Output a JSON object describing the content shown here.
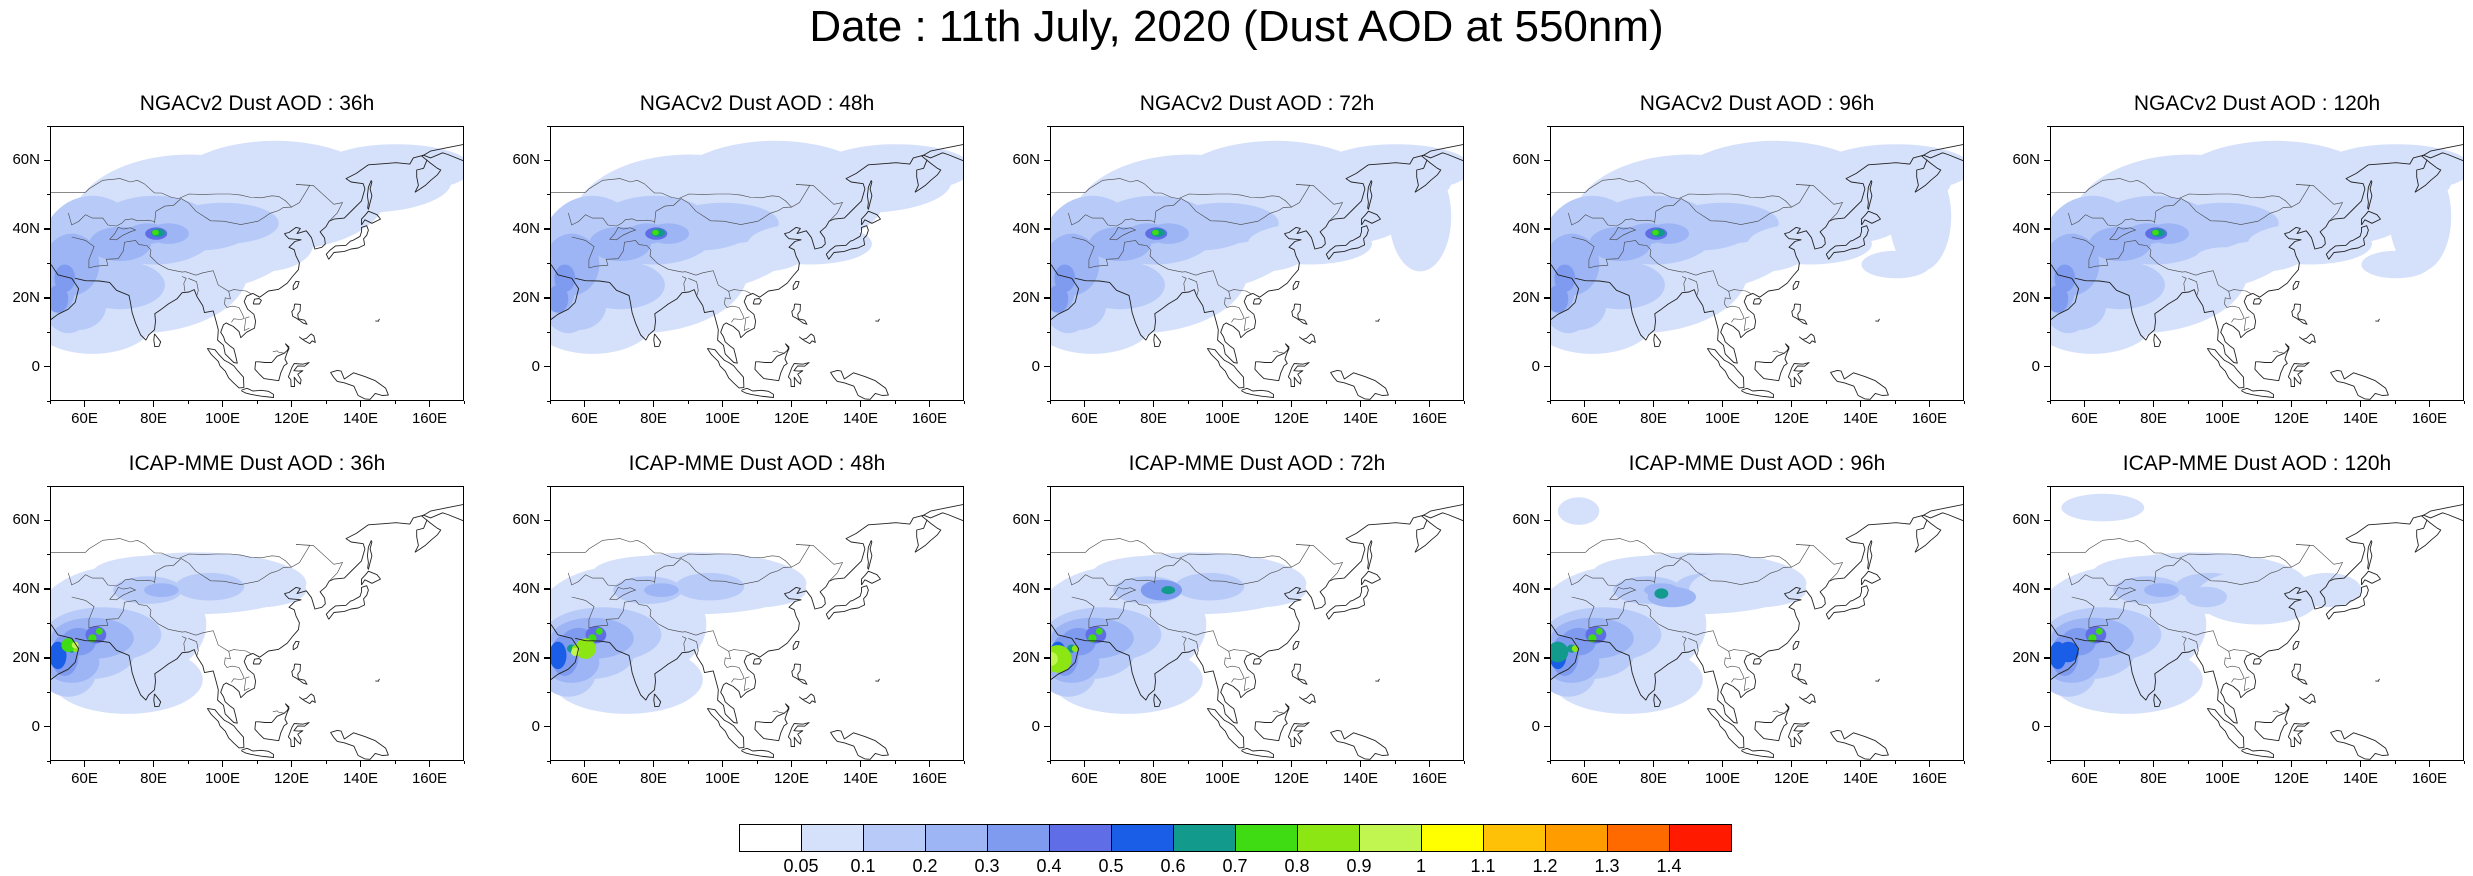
{
  "title": "Date : 11th July, 2020 (Dust AOD at 550nm)",
  "rows": [
    {
      "model": "NGACv2",
      "panels": [
        {
          "title": "NGACv2 Dust AOD : 36h",
          "lead": "36h"
        },
        {
          "title": "NGACv2 Dust AOD : 48h",
          "lead": "48h"
        },
        {
          "title": "NGACv2 Dust AOD : 72h",
          "lead": "72h"
        },
        {
          "title": "NGACv2 Dust AOD : 96h",
          "lead": "96h"
        },
        {
          "title": "NGACv2 Dust AOD : 120h",
          "lead": "120h"
        }
      ]
    },
    {
      "model": "ICAP-MME",
      "panels": [
        {
          "title": "ICAP-MME Dust AOD : 36h",
          "lead": "36h"
        },
        {
          "title": "ICAP-MME Dust AOD : 48h",
          "lead": "48h"
        },
        {
          "title": "ICAP-MME Dust AOD : 72h",
          "lead": "72h"
        },
        {
          "title": "ICAP-MME Dust AOD : 96h",
          "lead": "96h"
        },
        {
          "title": "ICAP-MME Dust AOD : 120h",
          "lead": "120h"
        }
      ]
    }
  ],
  "map": {
    "lon_range": [
      50,
      170
    ],
    "lat_range": [
      -10,
      70
    ],
    "lat_ticks": [
      "60N",
      "40N",
      "20N",
      "0"
    ],
    "lat_tick_values": [
      60,
      40,
      20,
      0
    ],
    "lon_ticks": [
      "60E",
      "80E",
      "100E",
      "120E",
      "140E",
      "160E"
    ],
    "lon_tick_values": [
      60,
      80,
      100,
      120,
      140,
      160
    ]
  },
  "colorbar": {
    "labels": [
      "0.05",
      "0.1",
      "0.2",
      "0.3",
      "0.4",
      "0.5",
      "0.6",
      "0.7",
      "0.8",
      "0.9",
      "1",
      "1.1",
      "1.2",
      "1.3",
      "1.4"
    ],
    "colors": [
      "#ffffff",
      "#d5e0fb",
      "#b8cbf8",
      "#9db5f5",
      "#7f9bf0",
      "#5f6ee6",
      "#1a5de6",
      "#129a8c",
      "#3fdc14",
      "#8be614",
      "#c1f550",
      "#ffff00",
      "#ffc107",
      "#ff9c00",
      "#ff6a00",
      "#ff1a00"
    ]
  }
}
